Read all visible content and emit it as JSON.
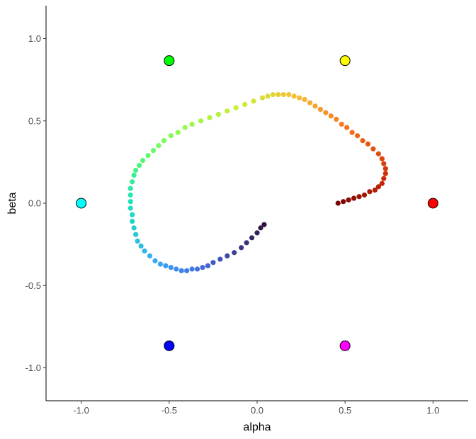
{
  "chart_data": {
    "type": "scatter",
    "title": "",
    "xlabel": "alpha",
    "ylabel": "beta",
    "xlim": [
      -1.2,
      1.2
    ],
    "ylim": [
      -1.2,
      1.2
    ],
    "x_ticks": [
      -1.0,
      -0.5,
      0.0,
      0.5,
      1.0
    ],
    "x_tick_labels": [
      "-1.0",
      "-0.5",
      "0.0",
      "0.5",
      "1.0"
    ],
    "y_ticks": [
      -1.0,
      -0.5,
      0.0,
      0.5,
      1.0
    ],
    "y_tick_labels": [
      "-1.0",
      "-0.5",
      "0.0",
      "0.5",
      "1.0"
    ],
    "grid": false,
    "legend": "none",
    "anchors": [
      {
        "x": 1.0,
        "y": 0.0,
        "color": "#ff0000"
      },
      {
        "x": 0.5,
        "y": 0.866,
        "color": "#ffff00"
      },
      {
        "x": -0.5,
        "y": 0.866,
        "color": "#00ff00"
      },
      {
        "x": -1.0,
        "y": 0.0,
        "color": "#00ffff"
      },
      {
        "x": -0.5,
        "y": -0.866,
        "color": "#0000ff"
      },
      {
        "x": 0.5,
        "y": -0.866,
        "color": "#ff00ff"
      }
    ],
    "trajectory_colormap": [
      "#30123b",
      "#4662d7",
      "#36aaf9",
      "#1ae4b6",
      "#72fe5e",
      "#c8ef34",
      "#faba39",
      "#f66b19",
      "#ca2a04",
      "#7a0403"
    ],
    "trajectory": [
      [
        0.04,
        -0.13
      ],
      [
        0.02,
        -0.15
      ],
      [
        0.0,
        -0.18
      ],
      [
        -0.03,
        -0.21
      ],
      [
        -0.06,
        -0.24
      ],
      [
        -0.09,
        -0.27
      ],
      [
        -0.13,
        -0.3
      ],
      [
        -0.17,
        -0.32
      ],
      [
        -0.21,
        -0.34
      ],
      [
        -0.25,
        -0.36
      ],
      [
        -0.28,
        -0.38
      ],
      [
        -0.31,
        -0.39
      ],
      [
        -0.34,
        -0.4
      ],
      [
        -0.37,
        -0.4
      ],
      [
        -0.4,
        -0.41
      ],
      [
        -0.43,
        -0.41
      ],
      [
        -0.46,
        -0.4
      ],
      [
        -0.49,
        -0.39
      ],
      [
        -0.52,
        -0.38
      ],
      [
        -0.55,
        -0.37
      ],
      [
        -0.58,
        -0.35
      ],
      [
        -0.61,
        -0.32
      ],
      [
        -0.64,
        -0.29
      ],
      [
        -0.66,
        -0.26
      ],
      [
        -0.68,
        -0.23
      ],
      [
        -0.69,
        -0.19
      ],
      [
        -0.7,
        -0.15
      ],
      [
        -0.71,
        -0.11
      ],
      [
        -0.71,
        -0.07
      ],
      [
        -0.72,
        -0.03
      ],
      [
        -0.72,
        0.01
      ],
      [
        -0.72,
        0.05
      ],
      [
        -0.72,
        0.09
      ],
      [
        -0.71,
        0.13
      ],
      [
        -0.7,
        0.17
      ],
      [
        -0.69,
        0.2
      ],
      [
        -0.67,
        0.23
      ],
      [
        -0.65,
        0.26
      ],
      [
        -0.62,
        0.29
      ],
      [
        -0.59,
        0.32
      ],
      [
        -0.56,
        0.35
      ],
      [
        -0.53,
        0.38
      ],
      [
        -0.49,
        0.41
      ],
      [
        -0.45,
        0.43
      ],
      [
        -0.41,
        0.46
      ],
      [
        -0.37,
        0.48
      ],
      [
        -0.32,
        0.5
      ],
      [
        -0.27,
        0.52
      ],
      [
        -0.22,
        0.54
      ],
      [
        -0.17,
        0.56
      ],
      [
        -0.12,
        0.58
      ],
      [
        -0.07,
        0.6
      ],
      [
        -0.02,
        0.62
      ],
      [
        0.03,
        0.64
      ],
      [
        0.06,
        0.65
      ],
      [
        0.09,
        0.66
      ],
      [
        0.12,
        0.66
      ],
      [
        0.15,
        0.66
      ],
      [
        0.18,
        0.66
      ],
      [
        0.21,
        0.65
      ],
      [
        0.24,
        0.64
      ],
      [
        0.27,
        0.63
      ],
      [
        0.3,
        0.61
      ],
      [
        0.33,
        0.59
      ],
      [
        0.36,
        0.57
      ],
      [
        0.39,
        0.55
      ],
      [
        0.42,
        0.53
      ],
      [
        0.45,
        0.51
      ],
      [
        0.48,
        0.48
      ],
      [
        0.51,
        0.46
      ],
      [
        0.54,
        0.43
      ],
      [
        0.57,
        0.41
      ],
      [
        0.6,
        0.38
      ],
      [
        0.63,
        0.36
      ],
      [
        0.66,
        0.33
      ],
      [
        0.69,
        0.3
      ],
      [
        0.71,
        0.27
      ],
      [
        0.72,
        0.24
      ],
      [
        0.73,
        0.21
      ],
      [
        0.73,
        0.18
      ],
      [
        0.72,
        0.15
      ],
      [
        0.71,
        0.12
      ],
      [
        0.69,
        0.1
      ],
      [
        0.67,
        0.08
      ],
      [
        0.64,
        0.07
      ],
      [
        0.61,
        0.05
      ],
      [
        0.58,
        0.04
      ],
      [
        0.55,
        0.03
      ],
      [
        0.52,
        0.02
      ],
      [
        0.49,
        0.01
      ],
      [
        0.46,
        0.0
      ]
    ]
  }
}
